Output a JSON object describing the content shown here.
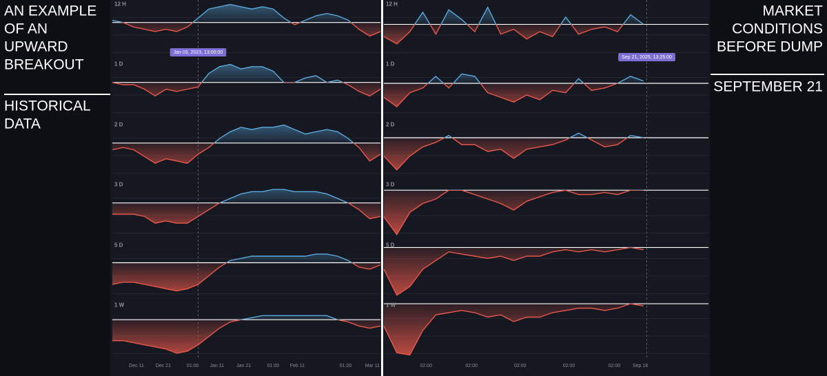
{
  "left_text": {
    "title_lines": [
      "AN EXAMPLE",
      "OF AN",
      "UPWARD",
      "BREAKOUT"
    ],
    "subtitle_lines": [
      "HISTORICAL",
      "DATA"
    ]
  },
  "right_text": {
    "title_lines": [
      "MARKET",
      "CONDITIONS",
      "BEFORE DUMP"
    ],
    "subtitle_lines": [
      "SEPTEMBER 21"
    ]
  },
  "chart_data": [
    {
      "type": "area",
      "baseline": 0,
      "colors": {
        "above": "#5aa9dc",
        "below": "#e8574a"
      },
      "xlim": [
        0,
        100
      ],
      "xticks": [
        {
          "value": 9,
          "label": "Dec 11"
        },
        {
          "value": 19,
          "label": "Dec 21"
        },
        {
          "value": 30,
          "label": "01:00"
        },
        {
          "value": 39,
          "label": "Jan 11"
        },
        {
          "value": 49,
          "label": "Jan 21"
        },
        {
          "value": 60,
          "label": "01:00"
        },
        {
          "value": 69,
          "label": "Feb 11"
        },
        {
          "value": 87,
          "label": "01:20"
        },
        {
          "value": 97,
          "label": "Mar 11"
        }
      ],
      "crosshair": {
        "value": 32,
        "label": "Jan 03, 2023, 13:00:00"
      },
      "x": [
        0,
        4,
        8,
        12,
        16,
        20,
        24,
        28,
        32,
        36,
        40,
        44,
        48,
        52,
        56,
        60,
        64,
        68,
        72,
        76,
        80,
        84,
        88,
        92,
        96,
        100
      ],
      "series": [
        {
          "name": "12 H",
          "ylim": [
            -16,
            10
          ],
          "values": [
            1,
            0,
            -2,
            -3,
            -4,
            -3,
            -4,
            -2,
            2,
            6,
            7,
            8,
            7,
            6,
            7,
            6,
            2,
            -1,
            1,
            3,
            4,
            3,
            1,
            -3,
            -6,
            -4
          ]
        },
        {
          "name": "1 D",
          "ylim": [
            -16,
            10
          ],
          "values": [
            0,
            -1,
            -1,
            -3,
            -6,
            -3,
            -4,
            -3,
            -2,
            4,
            7,
            8,
            6,
            7,
            7,
            5,
            0,
            0,
            2,
            3,
            0,
            1,
            -1,
            -4,
            -6,
            -3
          ]
        },
        {
          "name": "2 D",
          "ylim": [
            -16,
            10
          ],
          "values": [
            -3,
            -2,
            -3,
            -6,
            -9,
            -7,
            -8,
            -9,
            -5,
            -2,
            2,
            5,
            7,
            6,
            7,
            7,
            8,
            6,
            4,
            5,
            6,
            5,
            2,
            -2,
            -8,
            -5
          ]
        },
        {
          "name": "3 D",
          "ylim": [
            -16,
            10
          ],
          "values": [
            -5,
            -5,
            -5,
            -6,
            -9,
            -8,
            -9,
            -9,
            -6,
            -3,
            0,
            2,
            4,
            5,
            5,
            6,
            6,
            5,
            5,
            5,
            4,
            2,
            0,
            -3,
            -7,
            -6
          ]
        },
        {
          "name": "5 D",
          "ylim": [
            -17,
            10
          ],
          "values": [
            -10,
            -9,
            -9,
            -10,
            -11,
            -12,
            -13,
            -12,
            -10,
            -6,
            -2,
            1,
            2,
            3,
            3,
            3,
            3,
            3,
            3,
            4,
            4,
            3,
            1,
            -2,
            -3,
            -1
          ]
        },
        {
          "name": "1 W",
          "ylim": [
            -19,
            9
          ],
          "values": [
            -10,
            -10,
            -11,
            -12,
            -13,
            -14,
            -16,
            -15,
            -12,
            -8,
            -4,
            -1,
            0,
            1,
            2,
            2,
            2,
            2,
            2,
            2,
            2,
            0,
            -1,
            -3,
            -4,
            -3
          ]
        }
      ]
    },
    {
      "type": "area",
      "baseline": 0,
      "colors": {
        "above": "#5aa9dc",
        "below": "#e8574a"
      },
      "xlim": [
        0,
        100
      ],
      "xticks": [
        {
          "value": 13,
          "label": "02:00"
        },
        {
          "value": 27,
          "label": "02:00"
        },
        {
          "value": 42,
          "label": "02:00"
        },
        {
          "value": 57,
          "label": "02:00"
        },
        {
          "value": 71,
          "label": "02:00"
        },
        {
          "value": 79,
          "label": "Sep 18"
        }
      ],
      "crosshair": {
        "value": 81,
        "label": "Sep 21, 2025, 13:25:00"
      },
      "x": [
        0,
        4,
        8,
        12,
        16,
        20,
        24,
        28,
        32,
        36,
        40,
        44,
        48,
        52,
        56,
        60,
        64,
        68,
        72,
        76,
        80
      ],
      "series": [
        {
          "name": "12 H",
          "ylim": [
            -14,
            10
          ],
          "values": [
            -5,
            -8,
            -3,
            5,
            -4,
            6,
            2,
            -3,
            7,
            -4,
            -2,
            -6,
            -3,
            -5,
            3,
            -4,
            -2,
            -1,
            -3,
            4,
            0
          ]
        },
        {
          "name": "1 D",
          "ylim": [
            -15,
            10
          ],
          "values": [
            -6,
            -10,
            -4,
            -2,
            3,
            -2,
            4,
            3,
            -4,
            -6,
            -8,
            -5,
            -7,
            -3,
            -4,
            2,
            -3,
            -2,
            0,
            3,
            1
          ]
        },
        {
          "name": "2 D",
          "ylim": [
            -18,
            7.5
          ],
          "values": [
            -8,
            -14,
            -8,
            -4,
            -2,
            1,
            -3,
            -3,
            -6,
            -5,
            -9,
            -5,
            -4,
            -3,
            -1,
            2,
            -1,
            -4,
            -3,
            1,
            0
          ]
        },
        {
          "name": "3 D",
          "ylim": [
            -22,
            4.4
          ],
          "values": [
            -12,
            -20,
            -10,
            -6,
            -4,
            0,
            0,
            -2,
            -4,
            -6,
            -9,
            -5,
            -3,
            -1,
            0,
            -2,
            -2,
            -1,
            -2,
            0,
            0
          ]
        },
        {
          "name": "5 D",
          "ylim": [
            -24,
            3
          ],
          "values": [
            -10,
            -22,
            -18,
            -10,
            -6,
            -2,
            -3,
            -4,
            -5,
            -4,
            -6,
            -4,
            -4,
            -2,
            -1,
            -2,
            -1,
            -2,
            -1,
            0,
            -1
          ]
        },
        {
          "name": "1 W",
          "ylim": [
            -25,
            1.25
          ],
          "values": [
            -10,
            -22,
            -23,
            -12,
            -5,
            -4,
            -3,
            -4,
            -6,
            -5,
            -8,
            -6,
            -6,
            -4,
            -3,
            -2,
            -2,
            -3,
            -2,
            0,
            -1
          ]
        }
      ]
    }
  ]
}
